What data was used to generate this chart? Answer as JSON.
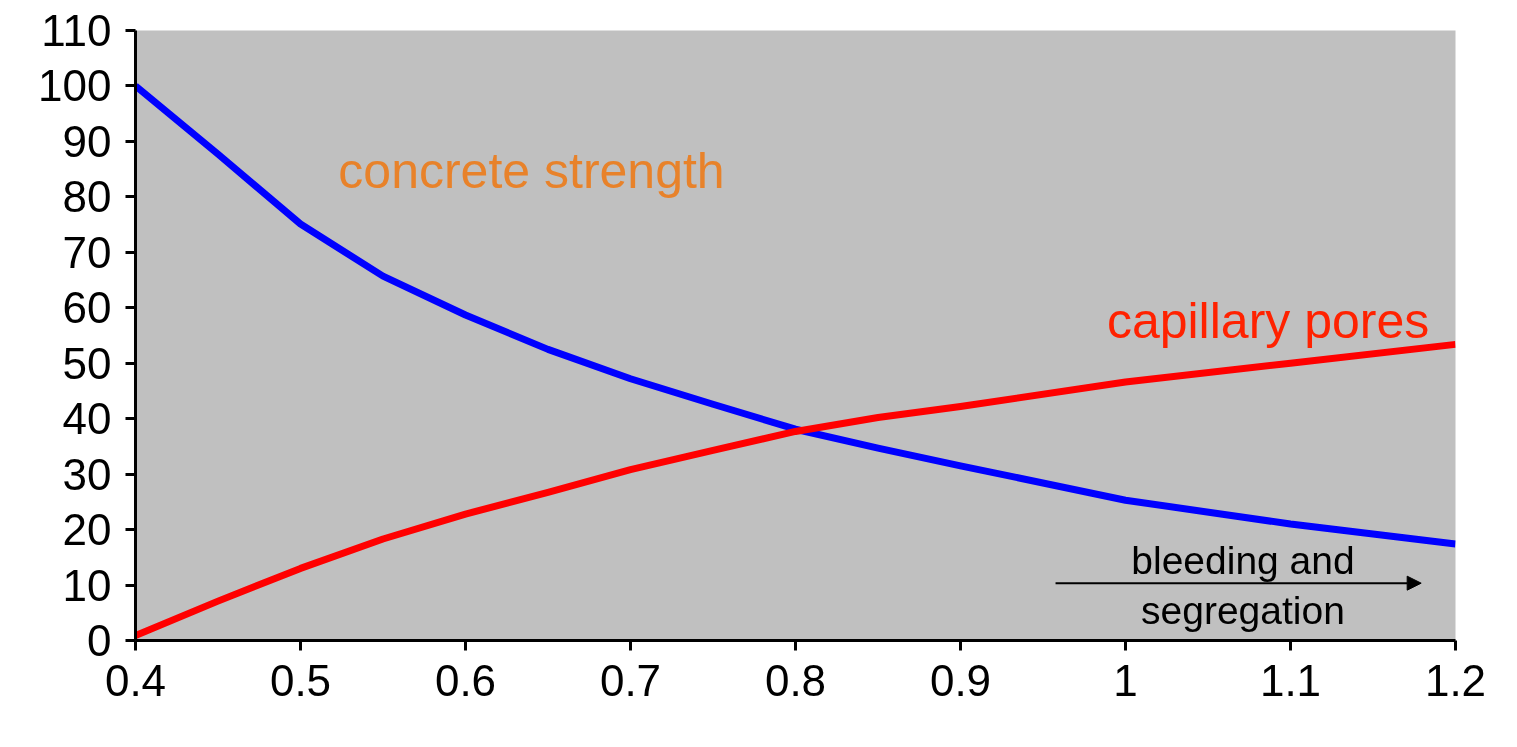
{
  "chart_data": {
    "type": "line",
    "x": [
      0.4,
      0.45,
      0.5,
      0.55,
      0.6,
      0.65,
      0.7,
      0.75,
      0.8,
      0.85,
      0.9,
      1.0,
      1.1,
      1.2
    ],
    "series": [
      {
        "color": "#0000ff",
        "values": [
          100,
          87.7,
          75.1,
          65.7,
          58.7,
          52.5,
          47.2,
          42.6,
          38.1,
          34.7,
          31.5,
          25.3,
          21,
          17.4
        ]
      },
      {
        "color": "#ff0000",
        "values": [
          0.9,
          7.1,
          13,
          18.3,
          22.8,
          26.7,
          30.8,
          34.3,
          37.7,
          40.2,
          42.2,
          46.6,
          50,
          53.4
        ]
      }
    ],
    "annotations": [
      "concrete strength",
      "capillary pores",
      "bleeding and\nsegregation"
    ],
    "xlim": [
      0.4,
      1.2
    ],
    "ylim": [
      0,
      110
    ],
    "xticks": [
      0.4,
      0.5,
      0.6,
      0.7,
      0.8,
      0.9,
      1,
      1.1,
      1.2
    ],
    "yticks": [
      0,
      10,
      20,
      30,
      40,
      50,
      60,
      70,
      80,
      90,
      100,
      110
    ],
    "grid": false,
    "marker": "none",
    "line_style": "solid"
  }
}
